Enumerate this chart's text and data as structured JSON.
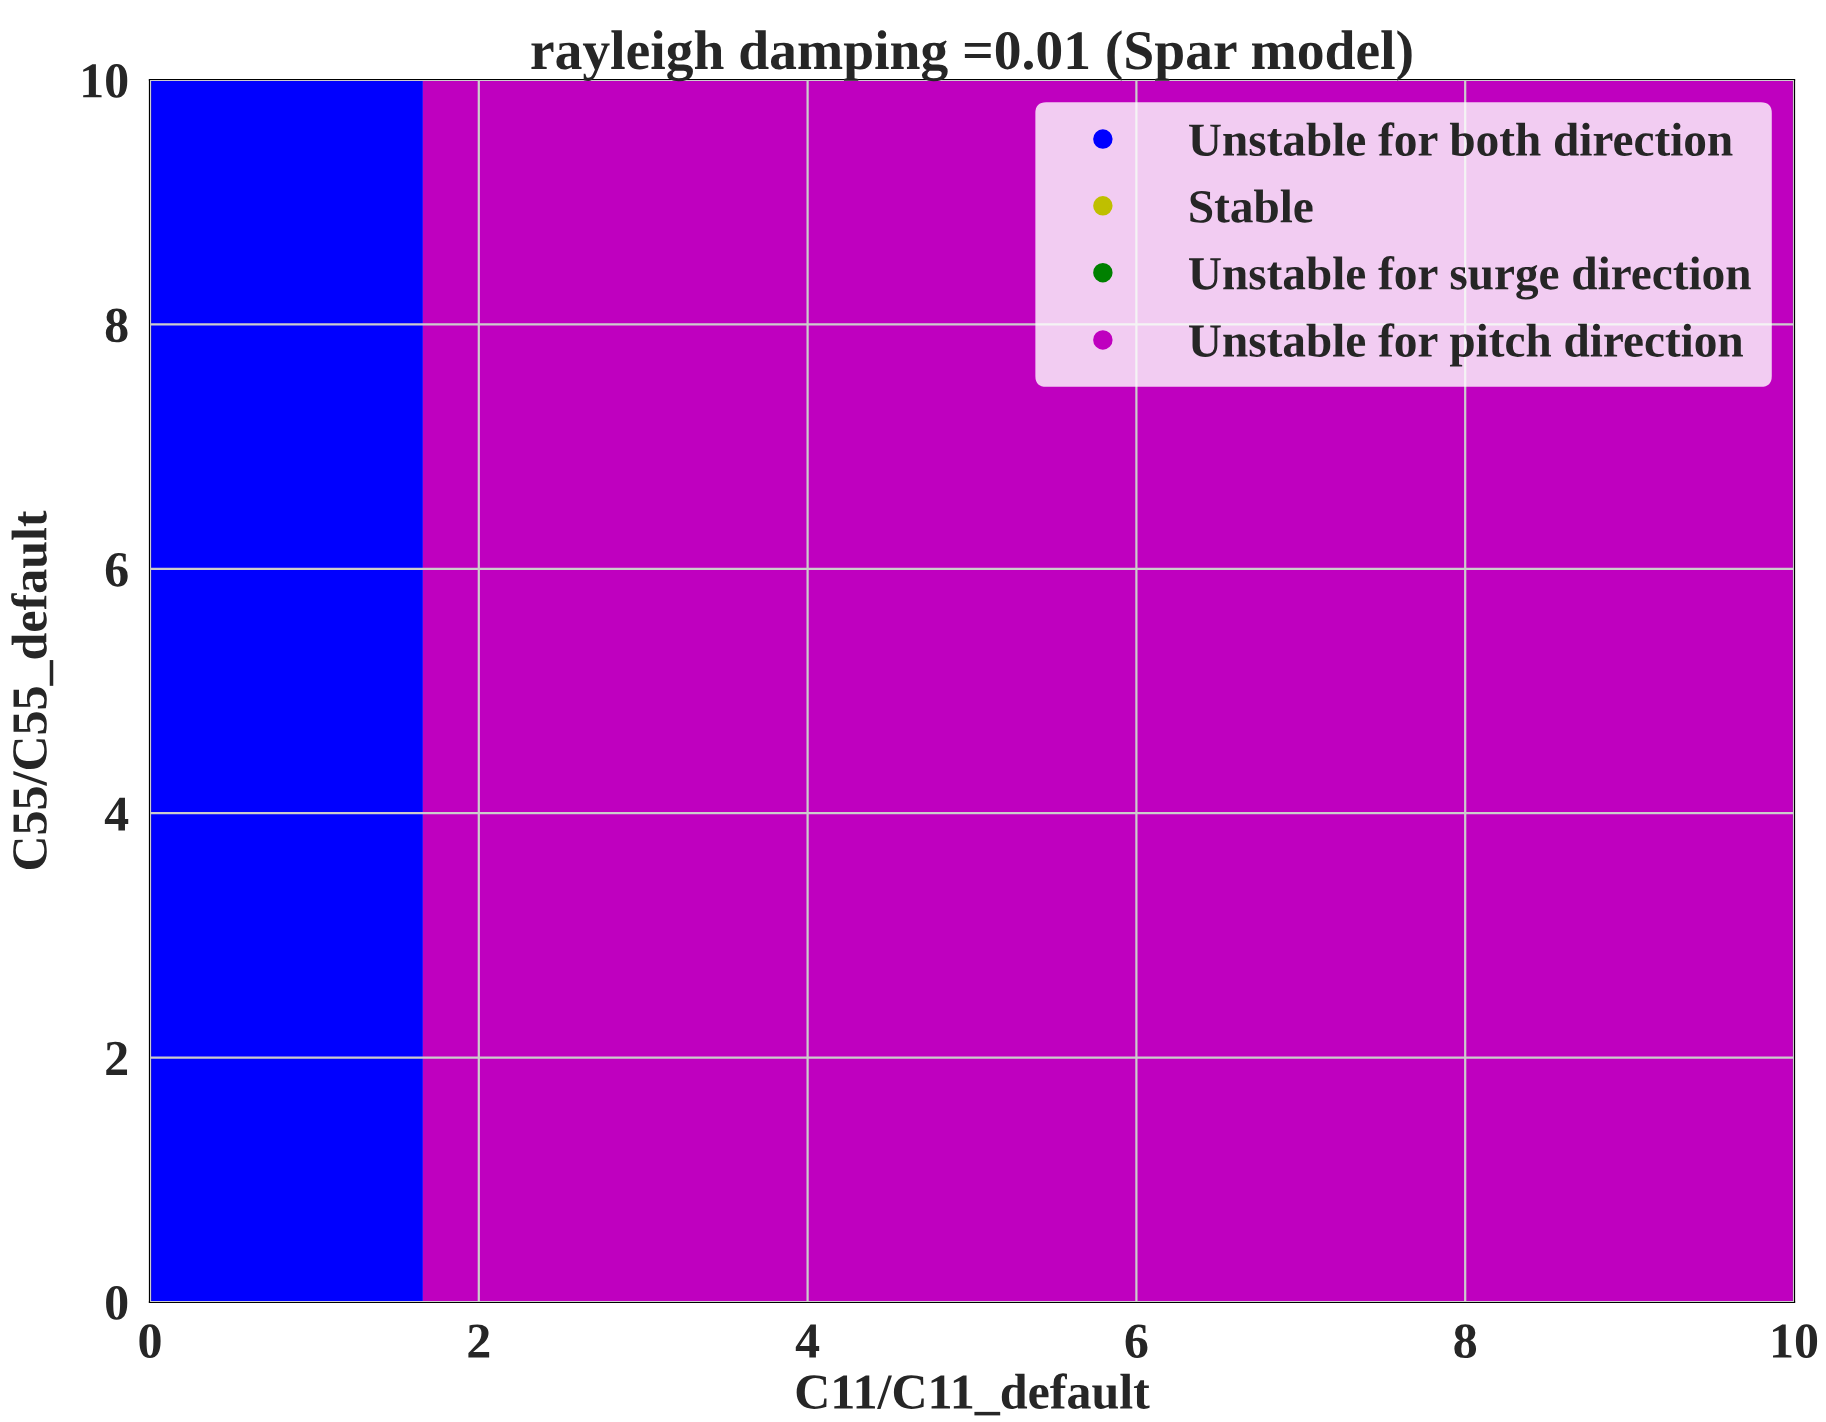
{
  "chart_data": {
    "type": "area",
    "title": "rayleigh damping =0.01 (Spar model)",
    "xlabel": "C11/C11_default",
    "ylabel": "C55/C55_default",
    "series": [
      {
        "name": "Unstable for both direction",
        "color": "#0000ff",
        "x": [
          0,
          1.66
        ],
        "values": [
          10,
          10
        ]
      },
      {
        "name": "Stable",
        "color": "#bfbf00"
      },
      {
        "name": "Unstable for surge direction",
        "color": "#008000"
      },
      {
        "name": "Unstable for pitch direction",
        "color": "#bf00bf",
        "x": [
          1.66,
          10
        ],
        "values": [
          10,
          10
        ]
      }
    ],
    "xlim": [
      0,
      10
    ],
    "ylim": [
      0,
      10
    ],
    "xticks": [
      0,
      2,
      4,
      6,
      8,
      10
    ],
    "yticks": [
      0,
      2,
      4,
      6,
      8,
      10
    ],
    "grid": true,
    "legend": "top right"
  }
}
